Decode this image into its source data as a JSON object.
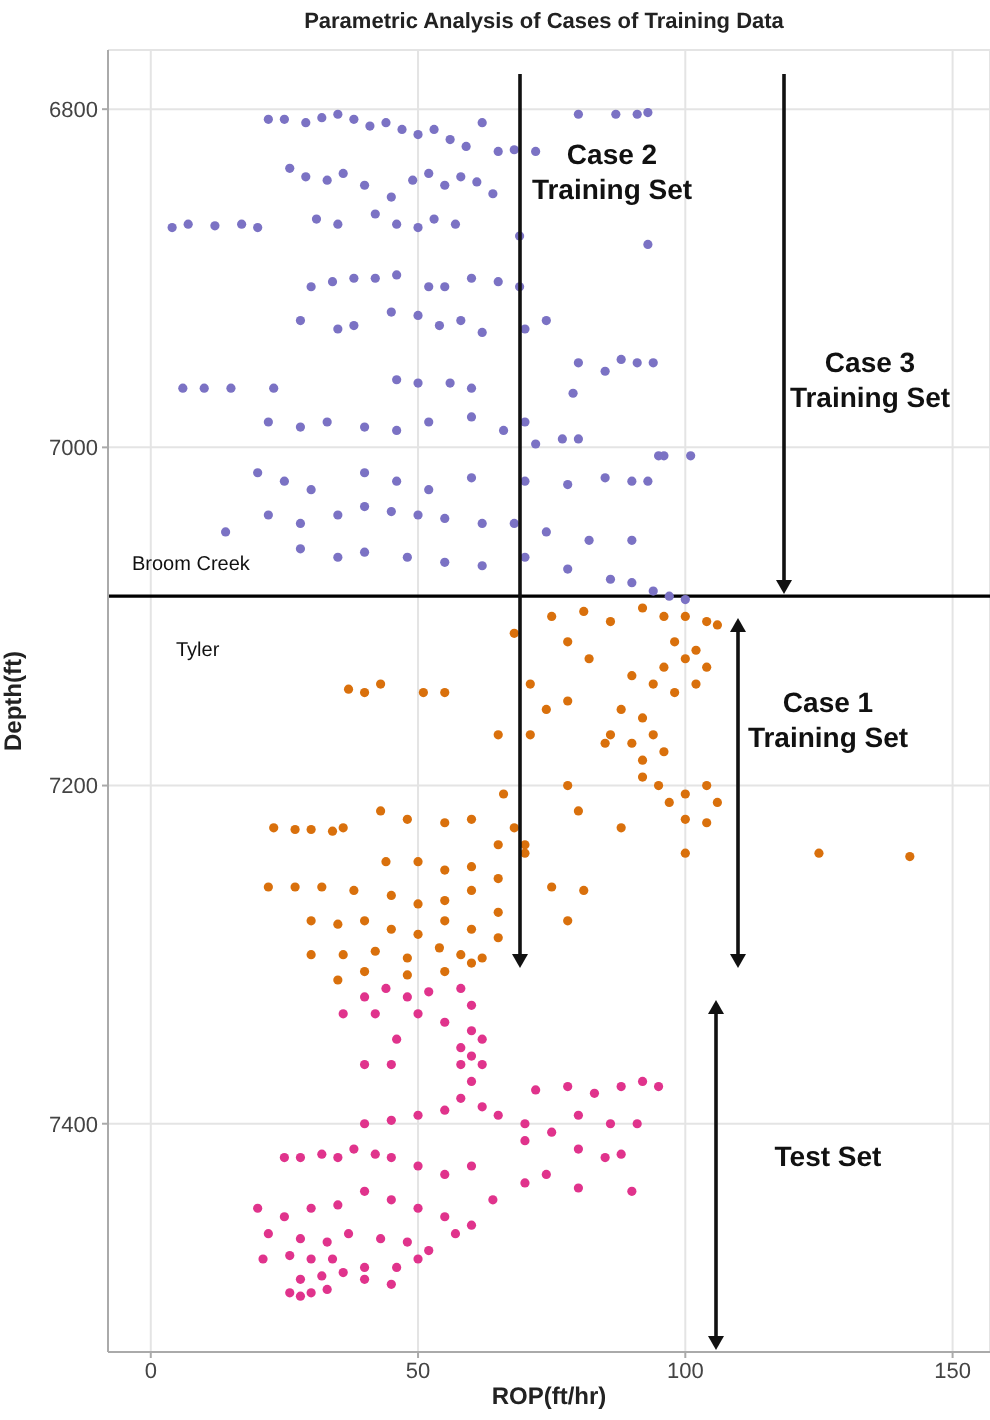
{
  "chart_data": {
    "type": "scatter",
    "title": "Parametric Analysis of Cases of Training Data",
    "xlabel": "ROP(ft/hr)",
    "ylabel": "Depth(ft)",
    "xlim": [
      -8,
      157
    ],
    "xticks": [
      0,
      50,
      100,
      150
    ],
    "ylim": [
      7535,
      6765
    ],
    "yticks": [
      6800,
      7000,
      7200,
      7400
    ],
    "grid": true,
    "marker": "circle",
    "ref_lines": [
      {
        "axis": "y",
        "value": 7088,
        "color": "#000000"
      }
    ],
    "annotations": [
      "Case 2\nTraining Set",
      "Case 3\nTraining Set",
      "Broom Creek",
      "Tyler",
      "Case 1\nTraining Set",
      "Test Set"
    ],
    "series": [
      {
        "color": "#7b72c4",
        "x": [
          22,
          25,
          29,
          32,
          35,
          38,
          41,
          44,
          47,
          50,
          53,
          56,
          59,
          62,
          65,
          68,
          72,
          80,
          87,
          91,
          93,
          26,
          29,
          33,
          36,
          40,
          45,
          49,
          52,
          55,
          58,
          61,
          64,
          4,
          7,
          12,
          17,
          20,
          31,
          35,
          42,
          46,
          50,
          53,
          57,
          69,
          93,
          30,
          34,
          38,
          42,
          46,
          52,
          55,
          60,
          65,
          69,
          28,
          35,
          38,
          45,
          50,
          54,
          58,
          62,
          70,
          74,
          80,
          85,
          88,
          91,
          94,
          6,
          10,
          15,
          23,
          46,
          50,
          56,
          60,
          70,
          79,
          22,
          28,
          33,
          40,
          46,
          52,
          60,
          66,
          72,
          77,
          80,
          95,
          101,
          20,
          25,
          30,
          40,
          46,
          52,
          60,
          70,
          78,
          85,
          90,
          93,
          96,
          22,
          28,
          35,
          40,
          45,
          50,
          55,
          62,
          68,
          74,
          82,
          90,
          14,
          28,
          35,
          40,
          48,
          55,
          62,
          70,
          78,
          86,
          90,
          94,
          97,
          100
        ],
        "values": [
          6806,
          6806,
          6808,
          6805,
          6803,
          6806,
          6810,
          6808,
          6812,
          6815,
          6812,
          6818,
          6822,
          6808,
          6825,
          6824,
          6825,
          6803,
          6803,
          6803,
          6802,
          6835,
          6840,
          6842,
          6838,
          6845,
          6852,
          6842,
          6838,
          6845,
          6840,
          6843,
          6850,
          6870,
          6868,
          6869,
          6868,
          6870,
          6865,
          6868,
          6862,
          6868,
          6870,
          6865,
          6868,
          6875,
          6880,
          6905,
          6902,
          6900,
          6900,
          6898,
          6905,
          6905,
          6900,
          6902,
          6905,
          6925,
          6930,
          6928,
          6920,
          6922,
          6928,
          6925,
          6932,
          6930,
          6925,
          6950,
          6955,
          6948,
          6950,
          6950,
          6965,
          6965,
          6965,
          6965,
          6960,
          6962,
          6962,
          6965,
          6985,
          6968,
          6985,
          6988,
          6985,
          6988,
          6990,
          6985,
          6982,
          6990,
          6998,
          6995,
          6995,
          7005,
          7005,
          7015,
          7020,
          7025,
          7015,
          7020,
          7025,
          7018,
          7020,
          7022,
          7018,
          7020,
          7020,
          7005,
          7040,
          7045,
          7040,
          7035,
          7038,
          7040,
          7042,
          7045,
          7045,
          7050,
          7055,
          7055,
          7050,
          7060,
          7065,
          7062,
          7065,
          7068,
          7070,
          7065,
          7072,
          7078,
          7080,
          7085,
          7088,
          7090
        ]
      },
      {
        "color": "#d9700c",
        "x": [
          68,
          75,
          81,
          86,
          92,
          96,
          100,
          104,
          106,
          98,
          102,
          96,
          100,
          104,
          94,
          98,
          102,
          90,
          88,
          86,
          92,
          90,
          92,
          94,
          96,
          92,
          95,
          97,
          100,
          104,
          106,
          100,
          104,
          78,
          82,
          71,
          74,
          78,
          37,
          40,
          43,
          51,
          55,
          65,
          71,
          85,
          78,
          66,
          80,
          88,
          100,
          125,
          142,
          36,
          23,
          27,
          30,
          34,
          43,
          48,
          55,
          60,
          68,
          65,
          70,
          44,
          50,
          55,
          60,
          65,
          70,
          75,
          22,
          27,
          32,
          38,
          45,
          50,
          55,
          60,
          65,
          81,
          30,
          35,
          40,
          45,
          50,
          55,
          60,
          65,
          78,
          30,
          36,
          42,
          48,
          54,
          58,
          62,
          35,
          40,
          48,
          55,
          60
        ],
        "values": [
          7110,
          7100,
          7097,
          7103,
          7095,
          7100,
          7100,
          7103,
          7105,
          7115,
          7120,
          7130,
          7125,
          7130,
          7140,
          7145,
          7140,
          7135,
          7155,
          7170,
          7160,
          7175,
          7185,
          7170,
          7180,
          7195,
          7200,
          7210,
          7205,
          7200,
          7210,
          7220,
          7222,
          7115,
          7125,
          7140,
          7155,
          7150,
          7143,
          7145,
          7140,
          7145,
          7145,
          7170,
          7170,
          7175,
          7200,
          7205,
          7215,
          7225,
          7240,
          7240,
          7242,
          7225,
          7225,
          7226,
          7226,
          7227,
          7215,
          7220,
          7222,
          7220,
          7225,
          7235,
          7235,
          7245,
          7245,
          7250,
          7248,
          7255,
          7240,
          7260,
          7260,
          7260,
          7260,
          7262,
          7265,
          7270,
          7268,
          7262,
          7275,
          7262,
          7280,
          7282,
          7280,
          7285,
          7288,
          7280,
          7285,
          7290,
          7280,
          7300,
          7300,
          7298,
          7302,
          7296,
          7300,
          7302,
          7315,
          7310,
          7312,
          7310,
          7305
        ]
      },
      {
        "color": "#e0338c",
        "x": [
          40,
          44,
          48,
          52,
          58,
          60,
          36,
          42,
          50,
          55,
          60,
          62,
          58,
          46,
          60,
          62,
          58,
          40,
          45,
          60,
          58,
          72,
          78,
          83,
          88,
          92,
          95,
          62,
          55,
          50,
          45,
          40,
          65,
          70,
          75,
          80,
          86,
          91,
          70,
          80,
          85,
          88,
          74,
          70,
          80,
          90,
          25,
          28,
          32,
          35,
          38,
          42,
          45,
          50,
          55,
          60,
          20,
          25,
          30,
          35,
          40,
          45,
          50,
          55,
          60,
          64,
          22,
          28,
          33,
          37,
          43,
          48,
          52,
          57,
          21,
          26,
          30,
          34,
          40,
          46,
          50,
          28,
          32,
          36,
          40,
          45,
          26,
          28,
          30,
          33
        ],
        "values": [
          7325,
          7320,
          7325,
          7322,
          7320,
          7330,
          7335,
          7335,
          7335,
          7340,
          7345,
          7350,
          7355,
          7350,
          7360,
          7365,
          7365,
          7365,
          7365,
          7375,
          7385,
          7380,
          7378,
          7382,
          7378,
          7375,
          7378,
          7390,
          7392,
          7395,
          7398,
          7400,
          7395,
          7400,
          7405,
          7395,
          7400,
          7400,
          7410,
          7415,
          7420,
          7418,
          7430,
          7435,
          7438,
          7440,
          7420,
          7420,
          7418,
          7420,
          7415,
          7418,
          7420,
          7425,
          7430,
          7425,
          7450,
          7455,
          7450,
          7448,
          7440,
          7445,
          7450,
          7455,
          7460,
          7445,
          7465,
          7468,
          7470,
          7465,
          7468,
          7470,
          7475,
          7465,
          7480,
          7478,
          7480,
          7480,
          7485,
          7485,
          7480,
          7492,
          7490,
          7488,
          7492,
          7495,
          7500,
          7502,
          7500,
          7498
        ]
      }
    ]
  }
}
